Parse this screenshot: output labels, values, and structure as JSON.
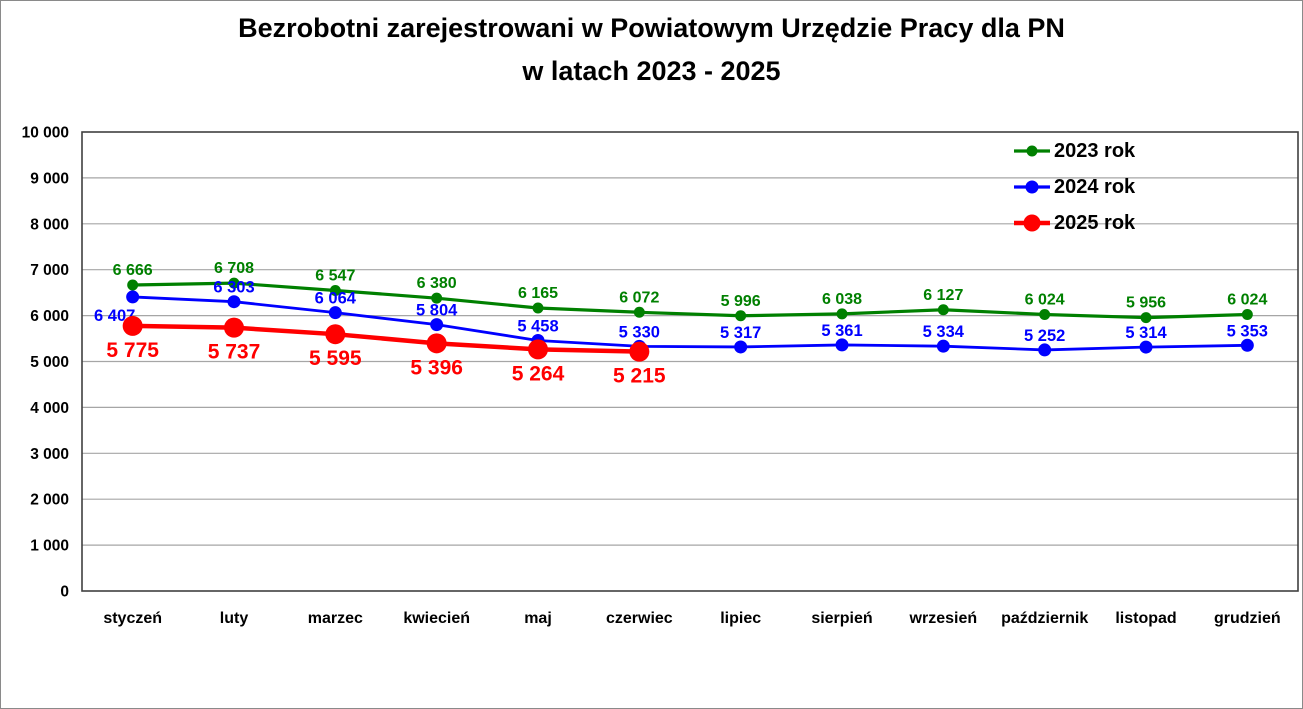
{
  "title": {
    "line1": "Bezrobotni zarejestrowani w Powiatowym Urzędzie Pracy dla PN",
    "line2": "w latach 2023 - 2025"
  },
  "chart_data": {
    "type": "line",
    "categories": [
      "styczeń",
      "luty",
      "marzec",
      "kwiecień",
      "maj",
      "czerwiec",
      "lipiec",
      "sierpień",
      "wrzesień",
      "październik",
      "listopad",
      "grudzień"
    ],
    "series": [
      {
        "name": "2023 rok",
        "color": "#008000",
        "values": [
          6666,
          6708,
          6547,
          6380,
          6165,
          6072,
          5996,
          6038,
          6127,
          6024,
          5956,
          6024
        ],
        "label_side": "above",
        "label_dy": -10,
        "label_size": 16,
        "marker_radius": 5.5,
        "line_width": 3.2
      },
      {
        "name": "2024 rok",
        "color": "#0000ff",
        "values": [
          6407,
          6303,
          6064,
          5804,
          5458,
          5330,
          5317,
          5361,
          5334,
          5252,
          5314,
          5353
        ],
        "label_side": "above",
        "label_dy": -9,
        "label_size": 16.5,
        "marker_radius": 6.5,
        "line_width": 2.8,
        "label_overrides": {
          "0": {
            "dx": -18,
            "dy": 24
          }
        }
      },
      {
        "name": "2025 rok",
        "color": "#ff0000",
        "values": [
          5775,
          5737,
          5595,
          5396,
          5264,
          5215
        ],
        "label_side": "below",
        "label_dy": 31,
        "label_size": 21,
        "marker_radius": 10,
        "line_width": 4.5
      }
    ],
    "ylim": [
      0,
      10000
    ],
    "ytick_step": 1000,
    "ytick_labels": [
      "0",
      "1 000",
      "2 000",
      "3 000",
      "4 000",
      "5 000",
      "6 000",
      "7 000",
      "8 000",
      "9 000",
      "10 000"
    ],
    "grid": true,
    "gridline_color": "#a6a6a6",
    "frame_color": "#404040",
    "axis_text_color": "#000000",
    "legend_position": "top-right",
    "value_format": "space-thousands"
  }
}
